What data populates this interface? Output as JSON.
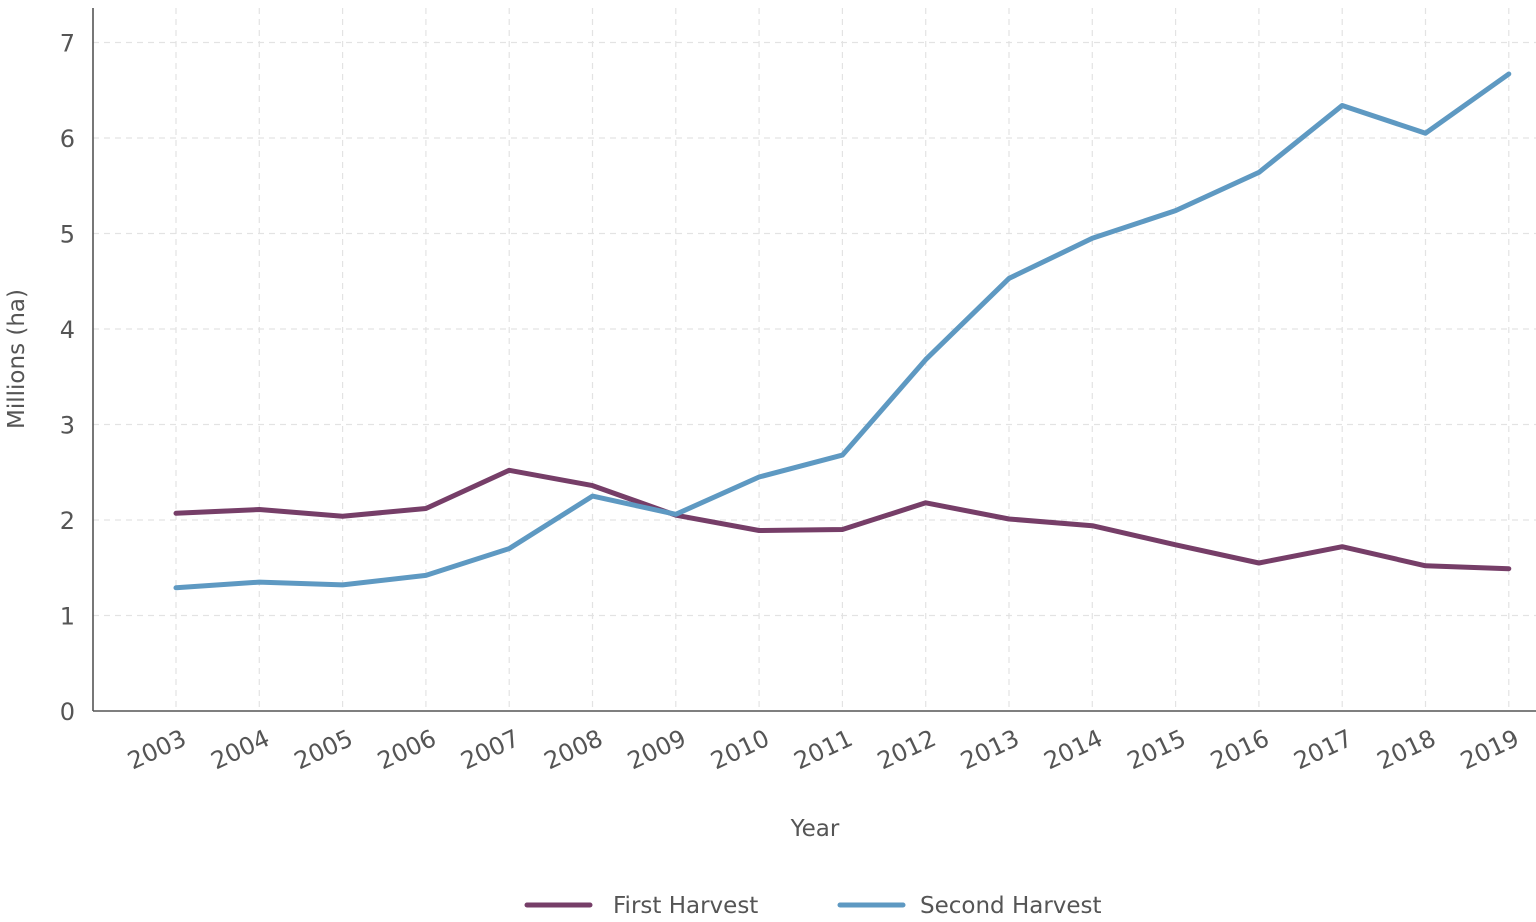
{
  "chart_data": {
    "type": "line",
    "title": "",
    "xlabel": "Year",
    "ylabel": "Millions (ha)",
    "x": [
      "2003",
      "2004",
      "2005",
      "2006",
      "2007",
      "2008",
      "2009",
      "2010",
      "2011",
      "2012",
      "2013",
      "2014",
      "2015",
      "2016",
      "2017",
      "2018",
      "2019"
    ],
    "ylim": [
      0,
      7
    ],
    "yticks": [
      0,
      1,
      2,
      3,
      4,
      5,
      6,
      7
    ],
    "grid": true,
    "legend_position": "bottom-center",
    "series": [
      {
        "name": "First Harvest",
        "color": "#763e68",
        "values": [
          2.07,
          2.11,
          2.04,
          2.12,
          2.52,
          2.36,
          2.05,
          1.89,
          1.9,
          2.18,
          2.01,
          1.94,
          1.74,
          1.55,
          1.72,
          1.52,
          1.49
        ]
      },
      {
        "name": "Second Harvest",
        "color": "#5e99c2",
        "values": [
          1.29,
          1.35,
          1.32,
          1.42,
          1.7,
          2.25,
          2.06,
          2.45,
          2.68,
          3.68,
          4.53,
          4.95,
          5.24,
          5.64,
          6.34,
          6.05,
          6.67
        ]
      }
    ]
  }
}
